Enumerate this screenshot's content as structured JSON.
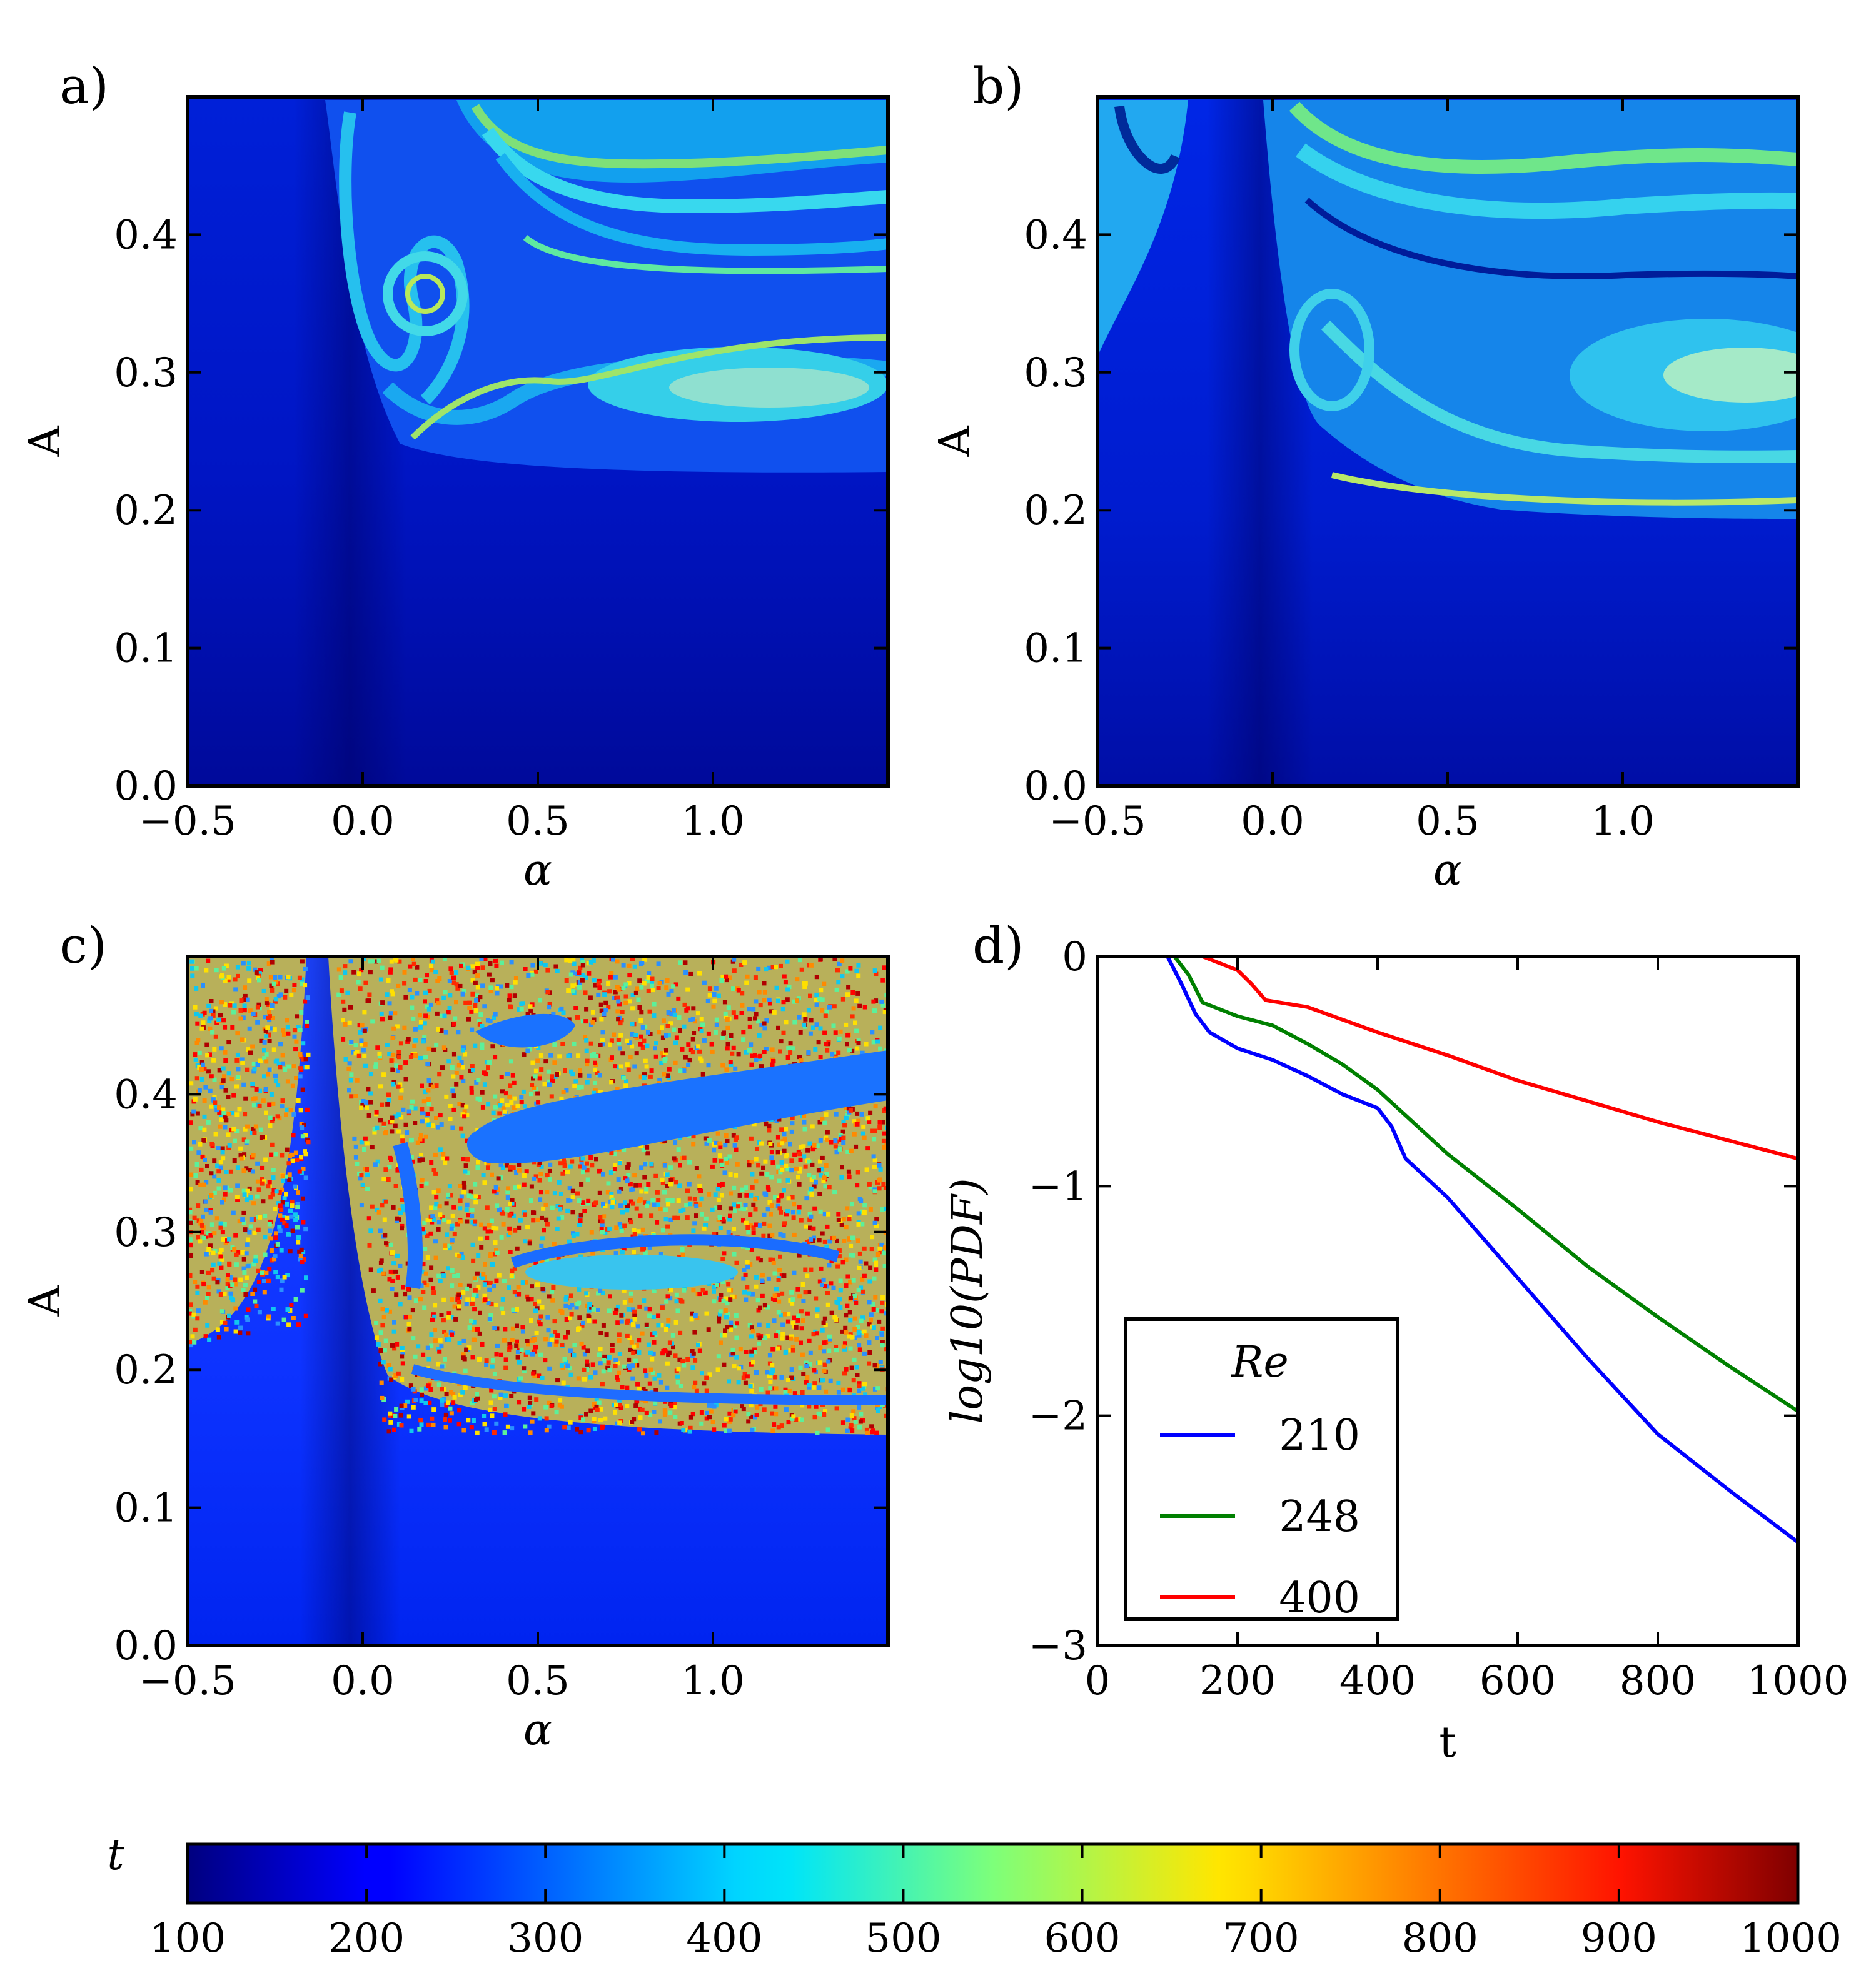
{
  "figure": {
    "panels": [
      {
        "id": "a",
        "label": "a)",
        "type": "heatmap",
        "xlabel": "α",
        "ylabel": "A",
        "xlim": [
          -0.5,
          1.5
        ],
        "ylim": [
          0.0,
          0.5
        ],
        "xticks": [
          -0.5,
          0.0,
          0.5,
          1.0
        ],
        "xtick_labels": [
          "−0.5",
          "0.0",
          "0.5",
          "1.0"
        ],
        "yticks": [
          0.0,
          0.1,
          0.2,
          0.3,
          0.4
        ],
        "ytick_labels": [
          "0.0",
          "0.1",
          "0.2",
          "0.3",
          "0.4"
        ],
        "chaos_level": "low",
        "chaotic_region_A_min": 0.23
      },
      {
        "id": "b",
        "label": "b)",
        "type": "heatmap",
        "xlabel": "α",
        "ylabel": "A",
        "xlim": [
          -0.5,
          1.5
        ],
        "ylim": [
          0.0,
          0.5
        ],
        "xticks": [
          -0.5,
          0.0,
          0.5,
          1.0
        ],
        "xtick_labels": [
          "−0.5",
          "0.0",
          "0.5",
          "1.0"
        ],
        "yticks": [
          0.0,
          0.1,
          0.2,
          0.3,
          0.4
        ],
        "ytick_labels": [
          "0.0",
          "0.1",
          "0.2",
          "0.3",
          "0.4"
        ],
        "chaos_level": "medium",
        "chaotic_region_A_min": 0.19
      },
      {
        "id": "c",
        "label": "c)",
        "type": "heatmap",
        "xlabel": "α",
        "ylabel": "A",
        "xlim": [
          -0.5,
          1.5
        ],
        "ylim": [
          0.0,
          0.5
        ],
        "xticks": [
          -0.5,
          0.0,
          0.5,
          1.0
        ],
        "xtick_labels": [
          "−0.5",
          "0.0",
          "0.5",
          "1.0"
        ],
        "yticks": [
          0.0,
          0.1,
          0.2,
          0.3,
          0.4
        ],
        "ytick_labels": [
          "0.0",
          "0.1",
          "0.2",
          "0.3",
          "0.4"
        ],
        "chaos_level": "high",
        "chaotic_region_A_min": 0.15
      },
      {
        "id": "d",
        "label": "d)",
        "type": "line",
        "xlabel": "t",
        "ylabel": "log10(PDF)"
      }
    ],
    "colorbar": {
      "label": "t",
      "min": 100,
      "max": 1000,
      "ticks": [
        100,
        200,
        300,
        400,
        500,
        600,
        700,
        800,
        900,
        1000
      ],
      "tick_labels": [
        "100",
        "200",
        "300",
        "400",
        "500",
        "600",
        "700",
        "800",
        "900",
        "1000"
      ]
    }
  },
  "chart_data": {
    "type": "line",
    "title": "",
    "xlabel": "t",
    "ylabel": "log10(PDF)",
    "xlim": [
      0,
      1000
    ],
    "ylim": [
      -3,
      0
    ],
    "xticks": [
      0,
      200,
      400,
      600,
      800,
      1000
    ],
    "xtick_labels": [
      "0",
      "200",
      "400",
      "600",
      "800",
      "1000"
    ],
    "yticks": [
      0,
      -1,
      -2,
      -3
    ],
    "ytick_labels": [
      "0",
      "−1",
      "−2",
      "−3"
    ],
    "legend": {
      "title": "Re",
      "placement": "lower-left"
    },
    "series": [
      {
        "name": "210",
        "color": "#0000ff",
        "x": [
          0,
          100,
          120,
          140,
          160,
          200,
          250,
          300,
          350,
          400,
          420,
          440,
          500,
          600,
          700,
          800,
          900,
          1000
        ],
        "y": [
          0,
          0,
          -0.12,
          -0.25,
          -0.33,
          -0.4,
          -0.45,
          -0.52,
          -0.6,
          -0.66,
          -0.74,
          -0.88,
          -1.05,
          -1.4,
          -1.75,
          -2.08,
          -2.32,
          -2.55
        ]
      },
      {
        "name": "248",
        "color": "#008000",
        "x": [
          0,
          110,
          130,
          150,
          200,
          250,
          300,
          350,
          400,
          500,
          600,
          700,
          800,
          900,
          1000
        ],
        "y": [
          0,
          0,
          -0.08,
          -0.2,
          -0.26,
          -0.3,
          -0.38,
          -0.47,
          -0.58,
          -0.86,
          -1.1,
          -1.35,
          -1.57,
          -1.78,
          -1.98
        ]
      },
      {
        "name": "400",
        "color": "#ff0000",
        "x": [
          0,
          150,
          200,
          220,
          240,
          300,
          400,
          500,
          600,
          700,
          800,
          900,
          1000
        ],
        "y": [
          0,
          0,
          -0.06,
          -0.12,
          -0.19,
          -0.22,
          -0.33,
          -0.43,
          -0.54,
          -0.63,
          -0.72,
          -0.8,
          -0.88
        ]
      }
    ]
  }
}
